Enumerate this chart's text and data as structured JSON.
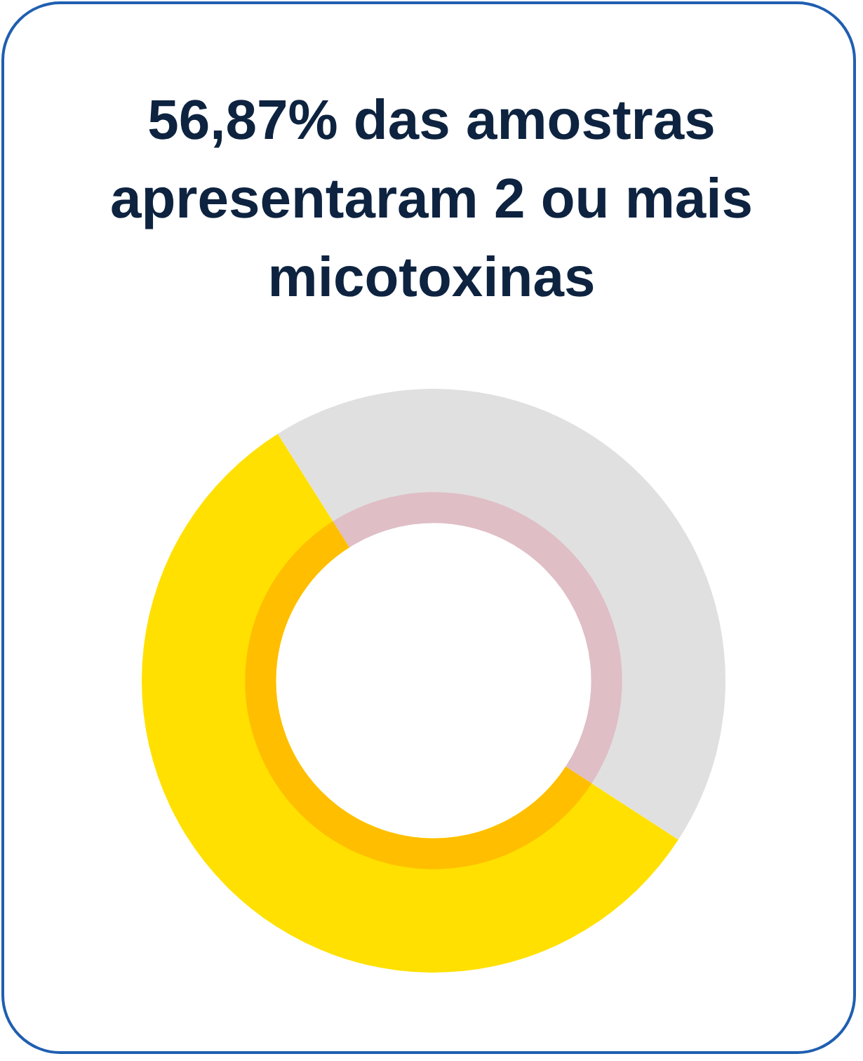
{
  "chart_data": {
    "type": "donut",
    "title": "56,87% das amostras apresentaram 2 ou mais micotoxinas",
    "categories": [
      null,
      null
    ],
    "values": [
      56.87,
      43.13
    ],
    "colors": [
      "#ffe000",
      "#e0e0e0"
    ]
  }
}
